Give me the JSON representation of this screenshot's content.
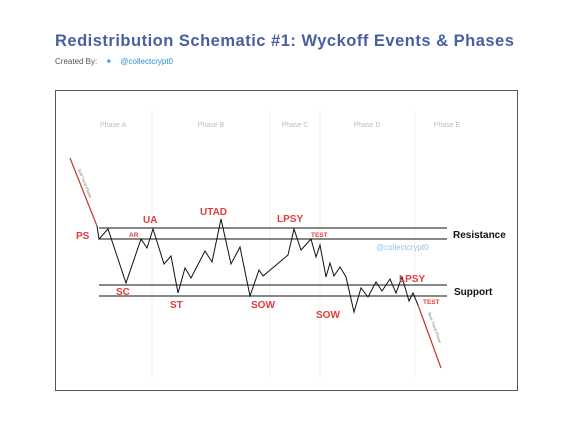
{
  "header": {
    "title": "Redistribution Schematic #1: Wyckoff Events & Phases",
    "credit_prefix": "Created By:",
    "credit_handle": "@collectcrypt0"
  },
  "diagram": {
    "phases": [
      "Phase A",
      "Phase B",
      "Phase C",
      "Phase D",
      "Phase E"
    ],
    "levels": {
      "resistance": "Resistance",
      "support": "Support"
    },
    "events": {
      "ps": "PS",
      "ar": "AR",
      "ua": "UA",
      "utad": "UTAD",
      "lpsy1": "LPSY",
      "test1": "TEST",
      "sc": "SC",
      "st": "ST",
      "sow1": "SOW",
      "sow2": "SOW",
      "lpsy2": "LPSY",
      "test2": "TEST"
    },
    "watermark": "@collectcrypt0",
    "trend_labels": {
      "before": "Bull Trend Phase",
      "after": "Bear Trend Phase"
    }
  },
  "colors": {
    "title": "#4a5fa0",
    "event": "#e23b3b",
    "handle": "#2a8fd8",
    "line": "#111111"
  }
}
